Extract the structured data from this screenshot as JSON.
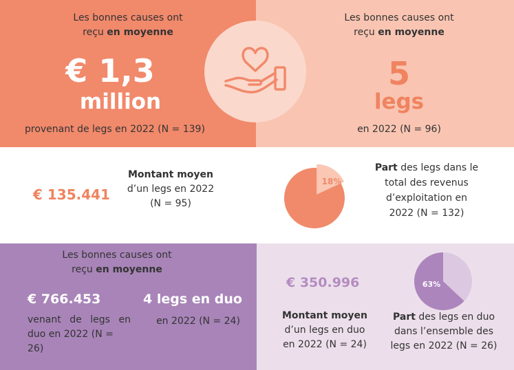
{
  "colors": {
    "salmon": "#f1896b",
    "peach": "#f9c5b2",
    "purple": "#a884b8",
    "lavender": "#ecdfeb",
    "pie_salmon": "#f08a6a",
    "pie_peach": "#f9c7b3",
    "pie_purple": "#ad85bd",
    "pie_lavender": "#dcc8e1"
  },
  "top_left": {
    "intro_line1": "Les bonnes causes ont",
    "intro_line2_pre": "reçu ",
    "intro_line2_bold": "en moyenne",
    "big_value": "€ 1,3",
    "big_unit": "million",
    "sub": "provenant de legs en 2022 (N = 139)"
  },
  "top_right": {
    "intro_line1": "Les bonnes causes ont",
    "intro_line2_pre": "reçu ",
    "intro_line2_bold": "en moyenne",
    "big_value": "5",
    "big_unit": "legs",
    "sub": "en 2022 (N = 96)"
  },
  "center_icon": "hand-heart-icon",
  "mid_left": {
    "value": "€ 135.441",
    "label_bold": "Montant moyen",
    "label_line2": "d’un legs en 2022",
    "label_line3": "(N = 95)"
  },
  "mid_right": {
    "pie_label": "18%",
    "pie_value": 0.18,
    "label_bold": "Part",
    "label_line1_rest": " des legs dans le",
    "label_line2": "total des revenus",
    "label_line3": "d’exploitation en",
    "label_line4": "2022 (N = 132)"
  },
  "bottom_left": {
    "intro_line1": "Les bonnes causes ont",
    "intro_line2_pre": "reçu ",
    "intro_line2_bold": "en moyenne",
    "value1": "€ 766.453",
    "sub1_line1": "venant de legs en",
    "sub1_line2": "duo en 2022 (N = 26)",
    "value2": "4 legs en duo",
    "sub2": "en 2022 (N = 24)"
  },
  "bottom_right": {
    "value": "€ 350.996",
    "label_bold": "Montant moyen",
    "label_line2": "d’un legs en duo",
    "label_line3": "en 2022 (N = 24)",
    "pie_label": "63%",
    "pie_value": 0.63,
    "part_bold": "Part",
    "part_line1_rest": " des legs en duo",
    "part_line2": "dans l’ensemble des",
    "part_line3": "legs en 2022 (N = 26)"
  }
}
